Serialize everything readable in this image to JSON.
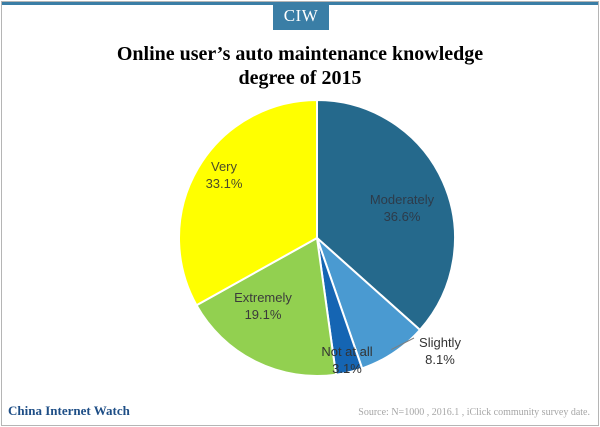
{
  "brand_tag": "CIW",
  "footer": {
    "brand": "China Internet Watch",
    "source": "Source: N=1000 , 2016.1 , iClick community survey date."
  },
  "chart_data": {
    "type": "pie",
    "title_line1": "Online user’s auto maintenance knowledge",
    "title_line2": "degree of 2015",
    "unit": "%",
    "slices": [
      {
        "label": "Moderately",
        "value": 36.6,
        "display": "36.6%",
        "color": "#25698c",
        "text_color": "#2d3b4a"
      },
      {
        "label": "Slightly",
        "value": 8.1,
        "display": "8.1%",
        "color": "#4a9ad1",
        "text_color": "#333333"
      },
      {
        "label": "Not at all",
        "value": 3.1,
        "display": "3.1%",
        "color": "#1565b3",
        "text_color": "#333333"
      },
      {
        "label": "Extremely",
        "value": 19.1,
        "display": "19.1%",
        "color": "#92d050",
        "text_color": "#3b3b3b"
      },
      {
        "label": "Very",
        "value": 33.1,
        "display": "33.1%",
        "color": "#ffff00",
        "text_color": "#4b4b2a"
      }
    ]
  }
}
